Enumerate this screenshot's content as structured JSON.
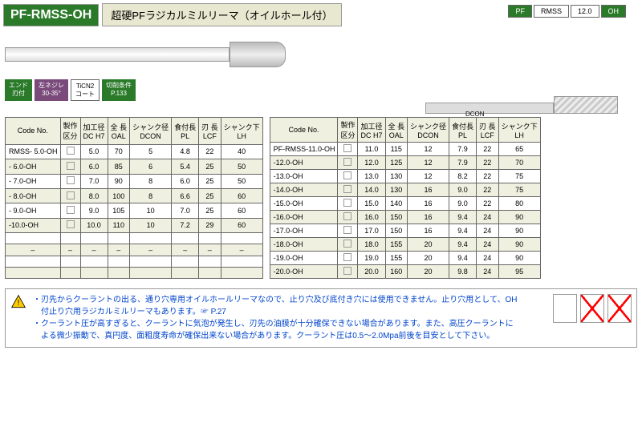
{
  "product_code": "PF-RMSS-OH",
  "product_title": "超硬PFラジカルミルリーマ（オイルホール付）",
  "top_spec": [
    "PF",
    "RMSS",
    "12.0",
    "OH"
  ],
  "diagram_label": "DCON",
  "tags": [
    {
      "text": "エンド\n刃付",
      "cls": "g"
    },
    {
      "text": "左ネジレ\n30-35°",
      "cls": "p"
    },
    {
      "text": "TiCN2\nコート",
      "cls": "w"
    },
    {
      "text": "切削条件\nP.133",
      "cls": "g"
    }
  ],
  "table_headers": [
    "Code No.",
    "製作\n区分",
    "加工径\nDC H7",
    "全 長\nOAL",
    "シャンク径\nDCON",
    "食付長\nPL",
    "刃 長\nLCF",
    "シャンク下\nLH"
  ],
  "table1_rows": [
    [
      "RMSS- 5.0-OH",
      "",
      "5.0",
      "70",
      "5",
      "4.8",
      "22",
      "40"
    ],
    [
      "- 6.0-OH",
      "",
      "6.0",
      "85",
      "6",
      "5.4",
      "25",
      "50"
    ],
    [
      "- 7.0-OH",
      "",
      "7.0",
      "90",
      "8",
      "6.0",
      "25",
      "50"
    ],
    [
      "- 8.0-OH",
      "",
      "8.0",
      "100",
      "8",
      "6.6",
      "25",
      "60"
    ],
    [
      "- 9.0-OH",
      "",
      "9.0",
      "105",
      "10",
      "7.0",
      "25",
      "60"
    ],
    [
      "-10.0-OH",
      "",
      "10.0",
      "110",
      "10",
      "7.2",
      "29",
      "60"
    ]
  ],
  "table1_empty": 4,
  "table2_rows": [
    [
      "PF-RMSS-11.0-OH",
      "",
      "11.0",
      "115",
      "12",
      "7.9",
      "22",
      "65"
    ],
    [
      "-12.0-OH",
      "",
      "12.0",
      "125",
      "12",
      "7.9",
      "22",
      "70"
    ],
    [
      "-13.0-OH",
      "",
      "13.0",
      "130",
      "12",
      "8.2",
      "22",
      "75"
    ],
    [
      "-14.0-OH",
      "",
      "14.0",
      "130",
      "16",
      "9.0",
      "22",
      "75"
    ],
    [
      "-15.0-OH",
      "",
      "15.0",
      "140",
      "16",
      "9.0",
      "22",
      "80"
    ],
    [
      "-16.0-OH",
      "",
      "16.0",
      "150",
      "16",
      "9.4",
      "24",
      "90"
    ],
    [
      "-17.0-OH",
      "",
      "17.0",
      "150",
      "16",
      "9.4",
      "24",
      "90"
    ],
    [
      "-18.0-OH",
      "",
      "18.0",
      "155",
      "20",
      "9.4",
      "24",
      "90"
    ],
    [
      "-19.0-OH",
      "",
      "19.0",
      "155",
      "20",
      "9.4",
      "24",
      "90"
    ],
    [
      "-20.0-OH",
      "",
      "20.0",
      "160",
      "20",
      "9.8",
      "24",
      "95"
    ]
  ],
  "notes": [
    "・刃先からクーラントの出る、通り穴専用オイルホールリーマなので、止り穴及び底付き穴には使用できません。止り穴用として、OH",
    "　付止り穴用ラジカルミルリーマもあります。☞ P.27",
    "・クーラント圧が高すぎると、クーラントに気泡が発生し、刃先の油膜が十分確保できない場合があります。また、高圧クーラントに",
    "　よる微少振動で、真円度、面粗度寿命が確保出来ない場合があります。クーラント圧は0.5～2.0Mpa前後を目安として下さい。"
  ]
}
